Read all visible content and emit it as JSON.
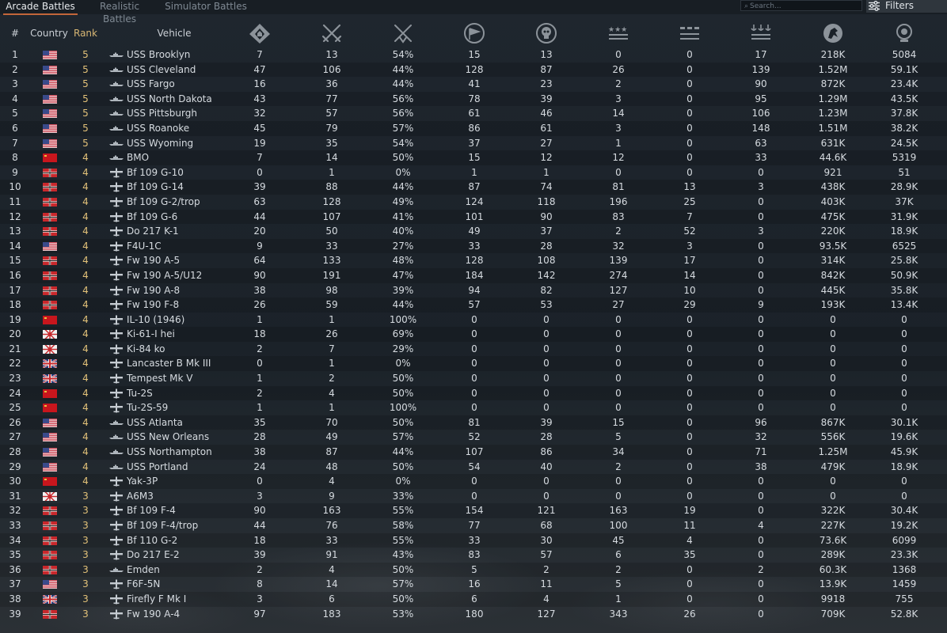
{
  "tabs": [
    {
      "label": "Arcade Battles",
      "active": true
    },
    {
      "label": "Realistic Battles",
      "active": false
    },
    {
      "label": "Simulator Battles",
      "active": false
    }
  ],
  "search": {
    "placeholder": "Search..."
  },
  "filters_label": "Filters",
  "columns": {
    "num": "#",
    "country": "Country",
    "rank": "Rank",
    "vehicle": "Vehicle",
    "stat_icons": [
      "battles-icon",
      "victories-icon",
      "win-rate-icon",
      "respawns-icon",
      "deaths-icon",
      "air-kills-icon",
      "ground-kills-icon",
      "naval-kills-icon",
      "research-points-icon",
      "silver-lions-icon"
    ]
  },
  "colors": {
    "accent": "#c3663a",
    "rank": "#e2c179"
  },
  "rows": [
    {
      "n": "1",
      "country": "usa",
      "rank": "5",
      "type": "ship",
      "vehicle": "USS Brooklyn",
      "s": [
        "7",
        "13",
        "54%",
        "15",
        "13",
        "0",
        "0",
        "17",
        "218K",
        "5084"
      ]
    },
    {
      "n": "2",
      "country": "usa",
      "rank": "5",
      "type": "ship",
      "vehicle": "USS Cleveland",
      "s": [
        "47",
        "106",
        "44%",
        "128",
        "87",
        "26",
        "0",
        "139",
        "1.52M",
        "59.1K"
      ]
    },
    {
      "n": "3",
      "country": "usa",
      "rank": "5",
      "type": "ship",
      "vehicle": "USS Fargo",
      "s": [
        "16",
        "36",
        "44%",
        "41",
        "23",
        "2",
        "0",
        "90",
        "872K",
        "23.4K"
      ]
    },
    {
      "n": "4",
      "country": "usa",
      "rank": "5",
      "type": "ship",
      "vehicle": "USS North Dakota",
      "s": [
        "43",
        "77",
        "56%",
        "78",
        "39",
        "3",
        "0",
        "95",
        "1.29M",
        "43.5K"
      ]
    },
    {
      "n": "5",
      "country": "usa",
      "rank": "5",
      "type": "ship",
      "vehicle": "USS Pittsburgh",
      "s": [
        "32",
        "57",
        "56%",
        "61",
        "46",
        "14",
        "0",
        "106",
        "1.23M",
        "37.8K"
      ]
    },
    {
      "n": "6",
      "country": "usa",
      "rank": "5",
      "type": "ship",
      "vehicle": "USS Roanoke",
      "s": [
        "45",
        "79",
        "57%",
        "86",
        "61",
        "3",
        "0",
        "148",
        "1.51M",
        "38.2K"
      ]
    },
    {
      "n": "7",
      "country": "usa",
      "rank": "5",
      "type": "ship",
      "vehicle": "USS Wyoming",
      "s": [
        "19",
        "35",
        "54%",
        "37",
        "27",
        "1",
        "0",
        "63",
        "631K",
        "24.5K"
      ]
    },
    {
      "n": "8",
      "country": "ussr",
      "rank": "4",
      "type": "ship",
      "vehicle": "BMO",
      "s": [
        "7",
        "14",
        "50%",
        "15",
        "12",
        "12",
        "0",
        "33",
        "44.6K",
        "5319"
      ]
    },
    {
      "n": "9",
      "country": "germany",
      "rank": "4",
      "type": "plane",
      "vehicle": "Bf 109 G-10",
      "s": [
        "0",
        "1",
        "0%",
        "1",
        "1",
        "0",
        "0",
        "0",
        "921",
        "51"
      ]
    },
    {
      "n": "10",
      "country": "germany",
      "rank": "4",
      "type": "plane",
      "vehicle": "Bf 109 G-14",
      "s": [
        "39",
        "88",
        "44%",
        "87",
        "74",
        "81",
        "13",
        "3",
        "438K",
        "28.9K"
      ]
    },
    {
      "n": "11",
      "country": "germany",
      "rank": "4",
      "type": "plane",
      "vehicle": "Bf 109 G-2/trop",
      "s": [
        "63",
        "128",
        "49%",
        "124",
        "118",
        "196",
        "25",
        "0",
        "403K",
        "37K"
      ]
    },
    {
      "n": "12",
      "country": "germany",
      "rank": "4",
      "type": "plane",
      "vehicle": "Bf 109 G-6",
      "s": [
        "44",
        "107",
        "41%",
        "101",
        "90",
        "83",
        "7",
        "0",
        "475K",
        "31.9K"
      ]
    },
    {
      "n": "13",
      "country": "germany",
      "rank": "4",
      "type": "plane",
      "vehicle": "Do 217 K-1",
      "s": [
        "20",
        "50",
        "40%",
        "49",
        "37",
        "2",
        "52",
        "3",
        "220K",
        "18.9K"
      ]
    },
    {
      "n": "14",
      "country": "usa",
      "rank": "4",
      "type": "plane",
      "vehicle": "F4U-1C",
      "s": [
        "9",
        "33",
        "27%",
        "33",
        "28",
        "32",
        "3",
        "0",
        "93.5K",
        "6525"
      ]
    },
    {
      "n": "15",
      "country": "germany",
      "rank": "4",
      "type": "plane",
      "vehicle": "Fw 190 A-5",
      "s": [
        "64",
        "133",
        "48%",
        "128",
        "108",
        "139",
        "17",
        "0",
        "314K",
        "25.8K"
      ]
    },
    {
      "n": "16",
      "country": "germany",
      "rank": "4",
      "type": "plane",
      "vehicle": "Fw 190 A-5/U12",
      "s": [
        "90",
        "191",
        "47%",
        "184",
        "142",
        "274",
        "14",
        "0",
        "842K",
        "50.9K"
      ]
    },
    {
      "n": "17",
      "country": "germany",
      "rank": "4",
      "type": "plane",
      "vehicle": "Fw 190 A-8",
      "s": [
        "38",
        "98",
        "39%",
        "94",
        "82",
        "127",
        "10",
        "0",
        "445K",
        "35.8K"
      ]
    },
    {
      "n": "18",
      "country": "germany",
      "rank": "4",
      "type": "plane",
      "vehicle": "Fw 190 F-8",
      "s": [
        "26",
        "59",
        "44%",
        "57",
        "53",
        "27",
        "29",
        "9",
        "193K",
        "13.4K"
      ]
    },
    {
      "n": "19",
      "country": "ussr",
      "rank": "4",
      "type": "plane",
      "vehicle": "IL-10 (1946)",
      "s": [
        "1",
        "1",
        "100%",
        "0",
        "0",
        "0",
        "0",
        "0",
        "0",
        "0"
      ]
    },
    {
      "n": "20",
      "country": "japan",
      "rank": "4",
      "type": "plane",
      "vehicle": "Ki-61-I hei",
      "s": [
        "18",
        "26",
        "69%",
        "0",
        "0",
        "0",
        "0",
        "0",
        "0",
        "0"
      ]
    },
    {
      "n": "21",
      "country": "japan",
      "rank": "4",
      "type": "plane",
      "vehicle": "Ki-84 ko",
      "s": [
        "2",
        "7",
        "29%",
        "0",
        "0",
        "0",
        "0",
        "0",
        "0",
        "0"
      ]
    },
    {
      "n": "22",
      "country": "uk",
      "rank": "4",
      "type": "plane",
      "vehicle": "Lancaster B Mk III",
      "s": [
        "0",
        "1",
        "0%",
        "0",
        "0",
        "0",
        "0",
        "0",
        "0",
        "0"
      ]
    },
    {
      "n": "23",
      "country": "uk",
      "rank": "4",
      "type": "plane",
      "vehicle": "Tempest Mk V",
      "s": [
        "1",
        "2",
        "50%",
        "0",
        "0",
        "0",
        "0",
        "0",
        "0",
        "0"
      ]
    },
    {
      "n": "24",
      "country": "ussr",
      "rank": "4",
      "type": "plane",
      "vehicle": "Tu-2S",
      "s": [
        "2",
        "4",
        "50%",
        "0",
        "0",
        "0",
        "0",
        "0",
        "0",
        "0"
      ]
    },
    {
      "n": "25",
      "country": "ussr",
      "rank": "4",
      "type": "plane",
      "vehicle": "Tu-2S-59",
      "s": [
        "1",
        "1",
        "100%",
        "0",
        "0",
        "0",
        "0",
        "0",
        "0",
        "0"
      ]
    },
    {
      "n": "26",
      "country": "usa",
      "rank": "4",
      "type": "ship",
      "vehicle": "USS Atlanta",
      "s": [
        "35",
        "70",
        "50%",
        "81",
        "39",
        "15",
        "0",
        "96",
        "867K",
        "30.1K"
      ]
    },
    {
      "n": "27",
      "country": "usa",
      "rank": "4",
      "type": "ship",
      "vehicle": "USS New Orleans",
      "s": [
        "28",
        "49",
        "57%",
        "52",
        "28",
        "5",
        "0",
        "32",
        "556K",
        "19.6K"
      ]
    },
    {
      "n": "28",
      "country": "usa",
      "rank": "4",
      "type": "ship",
      "vehicle": "USS Northampton",
      "s": [
        "38",
        "87",
        "44%",
        "107",
        "86",
        "34",
        "0",
        "71",
        "1.25M",
        "45.9K"
      ]
    },
    {
      "n": "29",
      "country": "usa",
      "rank": "4",
      "type": "ship",
      "vehicle": "USS Portland",
      "s": [
        "24",
        "48",
        "50%",
        "54",
        "40",
        "2",
        "0",
        "38",
        "479K",
        "18.9K"
      ]
    },
    {
      "n": "30",
      "country": "ussr",
      "rank": "4",
      "type": "plane",
      "vehicle": "Yak-3P",
      "s": [
        "0",
        "4",
        "0%",
        "0",
        "0",
        "0",
        "0",
        "0",
        "0",
        "0"
      ]
    },
    {
      "n": "31",
      "country": "japan",
      "rank": "3",
      "type": "plane",
      "vehicle": "A6M3",
      "s": [
        "3",
        "9",
        "33%",
        "0",
        "0",
        "0",
        "0",
        "0",
        "0",
        "0"
      ]
    },
    {
      "n": "32",
      "country": "germany",
      "rank": "3",
      "type": "plane",
      "vehicle": "Bf 109 F-4",
      "s": [
        "90",
        "163",
        "55%",
        "154",
        "121",
        "163",
        "19",
        "0",
        "322K",
        "30.4K"
      ]
    },
    {
      "n": "33",
      "country": "germany",
      "rank": "3",
      "type": "plane",
      "vehicle": "Bf 109 F-4/trop",
      "s": [
        "44",
        "76",
        "58%",
        "77",
        "68",
        "100",
        "11",
        "4",
        "227K",
        "19.2K"
      ]
    },
    {
      "n": "34",
      "country": "germany",
      "rank": "3",
      "type": "plane",
      "vehicle": "Bf 110 G-2",
      "s": [
        "18",
        "33",
        "55%",
        "33",
        "30",
        "45",
        "4",
        "0",
        "73.6K",
        "6099"
      ]
    },
    {
      "n": "35",
      "country": "germany",
      "rank": "3",
      "type": "plane",
      "vehicle": "Do 217 E-2",
      "s": [
        "39",
        "91",
        "43%",
        "83",
        "57",
        "6",
        "35",
        "0",
        "289K",
        "23.3K"
      ]
    },
    {
      "n": "36",
      "country": "germany",
      "rank": "3",
      "type": "ship",
      "vehicle": "Emden",
      "s": [
        "2",
        "4",
        "50%",
        "5",
        "2",
        "2",
        "0",
        "2",
        "60.3K",
        "1368"
      ]
    },
    {
      "n": "37",
      "country": "usa",
      "rank": "3",
      "type": "plane",
      "vehicle": "F6F-5N",
      "s": [
        "8",
        "14",
        "57%",
        "16",
        "11",
        "5",
        "0",
        "0",
        "13.9K",
        "1459"
      ]
    },
    {
      "n": "38",
      "country": "uk",
      "rank": "3",
      "type": "plane",
      "vehicle": "Firefly F Mk I",
      "s": [
        "3",
        "6",
        "50%",
        "6",
        "4",
        "1",
        "0",
        "0",
        "9918",
        "755"
      ]
    },
    {
      "n": "39",
      "country": "germany",
      "rank": "3",
      "type": "plane",
      "vehicle": "Fw 190 A-4",
      "s": [
        "97",
        "183",
        "53%",
        "180",
        "127",
        "343",
        "26",
        "0",
        "709K",
        "52.8K"
      ]
    }
  ]
}
